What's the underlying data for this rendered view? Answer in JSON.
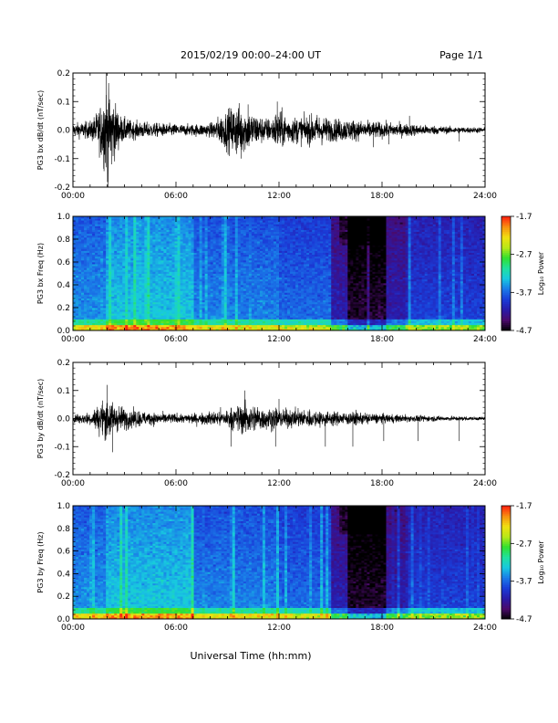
{
  "header": {
    "title": "2015/02/19  00:00–24:00 UT",
    "page": "Page 1/1"
  },
  "footer": {
    "xlabel": "Universal Time (hh:mm)"
  },
  "colorbar": {
    "label": "Log₁₀ Power",
    "ticks": [
      "-1.7",
      "-2.7",
      "-3.7",
      "-4.7"
    ],
    "tick_values": [
      -1.7,
      -2.7,
      -3.7,
      -4.7
    ],
    "range": [
      -4.7,
      -1.7
    ],
    "colors": [
      "#000000",
      "#4a0a6a",
      "#2a1aa8",
      "#1a3cd8",
      "#1a7ae8",
      "#18c8e0",
      "#20e0a0",
      "#30e030",
      "#b8e818",
      "#f0e010",
      "#f89010",
      "#ff2010"
    ]
  },
  "chart_data": [
    {
      "type": "line",
      "ylabel": "PG3 bx dB/dt (nT/sec)",
      "xlim": [
        0,
        24
      ],
      "ylim": [
        -0.2,
        0.2
      ],
      "x_ticks": [
        "00:00",
        "06:00",
        "12:00",
        "18:00",
        "24:00"
      ],
      "x_tick_values": [
        0,
        6,
        12,
        18,
        24
      ],
      "y_ticks": [
        "-0.2",
        "-0.1",
        "0.0",
        "0.1",
        "0.2"
      ],
      "y_tick_values": [
        -0.2,
        -0.1,
        0.0,
        0.1,
        0.2
      ],
      "series": [
        {
          "envelope": [
            [
              0,
              0.03
            ],
            [
              1,
              0.04
            ],
            [
              1.5,
              0.09
            ],
            [
              1.9,
              0.2
            ],
            [
              2.3,
              0.15
            ],
            [
              2.8,
              0.06
            ],
            [
              3.5,
              0.04
            ],
            [
              5,
              0.03
            ],
            [
              6.5,
              0.025
            ],
            [
              8,
              0.03
            ],
            [
              8.5,
              0.06
            ],
            [
              9.5,
              0.12
            ],
            [
              10.2,
              0.09
            ],
            [
              11,
              0.06
            ],
            [
              11.6,
              0.05
            ],
            [
              11.9,
              0.1
            ],
            [
              12.5,
              0.06
            ],
            [
              13.5,
              0.06
            ],
            [
              14.3,
              0.07
            ],
            [
              15,
              0.05
            ],
            [
              16,
              0.05
            ],
            [
              17,
              0.04
            ],
            [
              18,
              0.035
            ],
            [
              19,
              0.03
            ],
            [
              20,
              0.025
            ],
            [
              21,
              0.02
            ],
            [
              22,
              0.015
            ],
            [
              24,
              0.012
            ]
          ],
          "spikes": [
            [
              1.95,
              0.2
            ],
            [
              2.05,
              -0.2
            ],
            [
              2.25,
              -0.12
            ],
            [
              9.8,
              -0.1
            ],
            [
              10.2,
              0.09
            ],
            [
              11.9,
              0.1
            ],
            [
              17.5,
              -0.06
            ],
            [
              18.4,
              -0.05
            ],
            [
              19.6,
              0.05
            ],
            [
              22.5,
              -0.04
            ]
          ]
        }
      ]
    },
    {
      "type": "heatmap",
      "ylabel": "PG3 bx Freq (Hz)",
      "xlim": [
        0,
        24
      ],
      "ylim": [
        0,
        1
      ],
      "x_ticks": [
        "00:00",
        "06:00",
        "12:00",
        "18:00",
        "24:00"
      ],
      "x_tick_values": [
        0,
        6,
        12,
        18,
        24
      ],
      "y_ticks": [
        "0.0",
        "0.2",
        "0.4",
        "0.6",
        "0.8",
        "1.0"
      ],
      "y_tick_values": [
        0,
        0.2,
        0.4,
        0.6,
        0.8,
        1.0
      ],
      "crange": [
        -4.7,
        -1.7
      ],
      "quiet_interval": [
        15.0,
        18.5
      ],
      "low_freq_band": [
        0,
        0.05
      ]
    },
    {
      "type": "line",
      "ylabel": "PG3 by dB/dt (nT/sec)",
      "xlim": [
        0,
        24
      ],
      "ylim": [
        -0.2,
        0.2
      ],
      "x_ticks": [
        "00:00",
        "06:00",
        "12:00",
        "18:00",
        "24:00"
      ],
      "x_tick_values": [
        0,
        6,
        12,
        18,
        24
      ],
      "y_ticks": [
        "-0.2",
        "-0.1",
        "0.0",
        "0.1",
        "0.2"
      ],
      "y_tick_values": [
        -0.2,
        -0.1,
        0.0,
        0.1,
        0.2
      ],
      "series": [
        {
          "envelope": [
            [
              0,
              0.02
            ],
            [
              1,
              0.03
            ],
            [
              1.5,
              0.06
            ],
            [
              2,
              0.1
            ],
            [
              2.5,
              0.06
            ],
            [
              3.5,
              0.04
            ],
            [
              5,
              0.025
            ],
            [
              6.5,
              0.02
            ],
            [
              8,
              0.03
            ],
            [
              9.5,
              0.05
            ],
            [
              10,
              0.08
            ],
            [
              10.5,
              0.06
            ],
            [
              11.5,
              0.05
            ],
            [
              12.5,
              0.04
            ],
            [
              14,
              0.04
            ],
            [
              15,
              0.03
            ],
            [
              16.5,
              0.03
            ],
            [
              18,
              0.02
            ],
            [
              20,
              0.015
            ],
            [
              22,
              0.01
            ],
            [
              24,
              0.008
            ]
          ],
          "spikes": [
            [
              2.0,
              0.12
            ],
            [
              2.3,
              -0.12
            ],
            [
              9.2,
              -0.1
            ],
            [
              10.0,
              0.1
            ],
            [
              11.8,
              -0.1
            ],
            [
              12.0,
              0.07
            ],
            [
              14.7,
              -0.1
            ],
            [
              16.3,
              -0.1
            ],
            [
              18.1,
              -0.08
            ],
            [
              20.1,
              -0.08
            ],
            [
              22.5,
              -0.08
            ]
          ]
        }
      ]
    },
    {
      "type": "heatmap",
      "ylabel": "PG3 by Freq (Hz)",
      "xlim": [
        0,
        24
      ],
      "ylim": [
        0,
        1
      ],
      "x_ticks": [
        "00:00",
        "06:00",
        "12:00",
        "18:00",
        "24:00"
      ],
      "x_tick_values": [
        0,
        6,
        12,
        18,
        24
      ],
      "y_ticks": [
        "0.0",
        "0.2",
        "0.4",
        "0.6",
        "0.8",
        "1.0"
      ],
      "y_tick_values": [
        0,
        0.2,
        0.4,
        0.6,
        0.8,
        1.0
      ],
      "crange": [
        -4.7,
        -1.7
      ],
      "quiet_interval": [
        15.0,
        18.5
      ],
      "low_freq_band": [
        0,
        0.05
      ]
    }
  ]
}
